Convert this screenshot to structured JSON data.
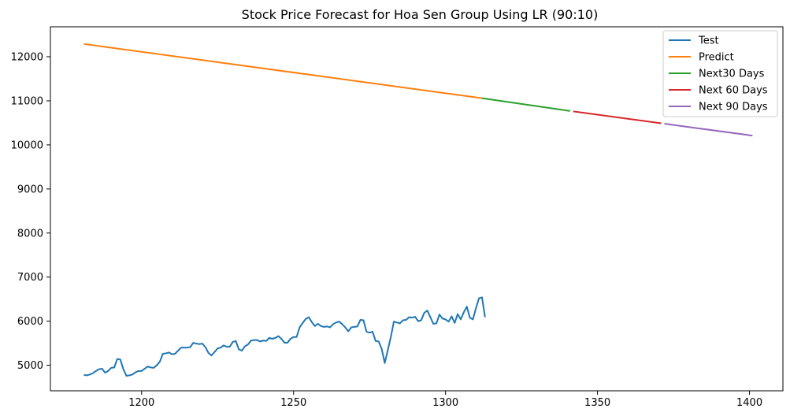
{
  "chart_data": {
    "type": "line",
    "title": "Stock Price Forecast for Hoa Sen Group Using LR (90:10)",
    "xlabel": "",
    "ylabel": "",
    "xlim": [
      1170,
      1411
    ],
    "ylim": [
      4420,
      12680
    ],
    "xticks": [
      1200,
      1250,
      1300,
      1350,
      1400
    ],
    "yticks": [
      5000,
      6000,
      7000,
      8000,
      9000,
      10000,
      11000,
      12000
    ],
    "grid": false,
    "legend_position": "top-right",
    "series": [
      {
        "name": "Test",
        "color": "#1f77b4",
        "points": [
          [
            1181,
            4780
          ],
          [
            1182,
            4770
          ],
          [
            1183,
            4790
          ],
          [
            1184,
            4820
          ],
          [
            1185,
            4870
          ],
          [
            1186,
            4910
          ],
          [
            1187,
            4920
          ],
          [
            1188,
            4830
          ],
          [
            1189,
            4870
          ],
          [
            1190,
            4940
          ],
          [
            1191,
            4950
          ],
          [
            1192,
            5140
          ],
          [
            1193,
            5130
          ],
          [
            1194,
            4910
          ],
          [
            1195,
            4760
          ],
          [
            1196,
            4770
          ],
          [
            1197,
            4790
          ],
          [
            1198,
            4840
          ],
          [
            1199,
            4870
          ],
          [
            1200,
            4870
          ],
          [
            1201,
            4920
          ],
          [
            1202,
            4970
          ],
          [
            1203,
            4950
          ],
          [
            1204,
            4940
          ],
          [
            1205,
            5000
          ],
          [
            1206,
            5080
          ],
          [
            1207,
            5260
          ],
          [
            1208,
            5270
          ],
          [
            1209,
            5290
          ],
          [
            1210,
            5250
          ],
          [
            1211,
            5260
          ],
          [
            1212,
            5330
          ],
          [
            1213,
            5400
          ],
          [
            1214,
            5400
          ],
          [
            1215,
            5400
          ],
          [
            1216,
            5410
          ],
          [
            1217,
            5510
          ],
          [
            1218,
            5490
          ],
          [
            1219,
            5480
          ],
          [
            1220,
            5490
          ],
          [
            1221,
            5410
          ],
          [
            1222,
            5280
          ],
          [
            1223,
            5220
          ],
          [
            1224,
            5300
          ],
          [
            1225,
            5380
          ],
          [
            1226,
            5400
          ],
          [
            1227,
            5450
          ],
          [
            1228,
            5420
          ],
          [
            1229,
            5420
          ],
          [
            1230,
            5530
          ],
          [
            1231,
            5550
          ],
          [
            1232,
            5360
          ],
          [
            1233,
            5330
          ],
          [
            1234,
            5430
          ],
          [
            1235,
            5470
          ],
          [
            1236,
            5560
          ],
          [
            1237,
            5570
          ],
          [
            1238,
            5570
          ],
          [
            1239,
            5540
          ],
          [
            1240,
            5560
          ],
          [
            1241,
            5550
          ],
          [
            1242,
            5620
          ],
          [
            1243,
            5600
          ],
          [
            1244,
            5620
          ],
          [
            1245,
            5660
          ],
          [
            1246,
            5600
          ],
          [
            1247,
            5510
          ],
          [
            1248,
            5510
          ],
          [
            1249,
            5600
          ],
          [
            1250,
            5640
          ],
          [
            1251,
            5640
          ],
          [
            1252,
            5860
          ],
          [
            1253,
            5960
          ],
          [
            1254,
            6050
          ],
          [
            1255,
            6090
          ],
          [
            1256,
            5980
          ],
          [
            1257,
            5890
          ],
          [
            1258,
            5940
          ],
          [
            1259,
            5890
          ],
          [
            1260,
            5870
          ],
          [
            1261,
            5880
          ],
          [
            1262,
            5860
          ],
          [
            1263,
            5930
          ],
          [
            1264,
            5970
          ],
          [
            1265,
            5990
          ],
          [
            1266,
            5930
          ],
          [
            1267,
            5860
          ],
          [
            1268,
            5770
          ],
          [
            1269,
            5860
          ],
          [
            1270,
            5870
          ],
          [
            1271,
            5880
          ],
          [
            1272,
            6030
          ],
          [
            1273,
            6020
          ],
          [
            1274,
            5760
          ],
          [
            1275,
            5740
          ],
          [
            1276,
            5760
          ],
          [
            1277,
            5550
          ],
          [
            1278,
            5540
          ],
          [
            1279,
            5370
          ],
          [
            1280,
            5050
          ],
          [
            1281,
            5340
          ],
          [
            1282,
            5640
          ],
          [
            1283,
            5990
          ],
          [
            1284,
            5970
          ],
          [
            1285,
            5950
          ],
          [
            1286,
            6020
          ],
          [
            1287,
            6030
          ],
          [
            1288,
            6090
          ],
          [
            1289,
            6080
          ],
          [
            1290,
            6100
          ],
          [
            1291,
            6000
          ],
          [
            1292,
            6020
          ],
          [
            1293,
            6190
          ],
          [
            1294,
            6240
          ],
          [
            1295,
            6090
          ],
          [
            1296,
            5940
          ],
          [
            1297,
            5950
          ],
          [
            1298,
            6150
          ],
          [
            1299,
            6060
          ],
          [
            1300,
            6040
          ],
          [
            1301,
            5990
          ],
          [
            1302,
            6110
          ],
          [
            1303,
            5960
          ],
          [
            1304,
            6160
          ],
          [
            1305,
            6040
          ],
          [
            1306,
            6200
          ],
          [
            1307,
            6330
          ],
          [
            1308,
            6080
          ],
          [
            1309,
            6040
          ],
          [
            1310,
            6290
          ],
          [
            1311,
            6520
          ],
          [
            1312,
            6540
          ],
          [
            1313,
            6090
          ]
        ]
      },
      {
        "name": "Predict",
        "color": "#ff7f0e",
        "points": [
          [
            1181,
            12290
          ],
          [
            1312,
            11060
          ]
        ]
      },
      {
        "name": "Next30 Days",
        "color": "#2ca02c",
        "points": [
          [
            1312,
            11060
          ],
          [
            1341,
            10770
          ]
        ]
      },
      {
        "name": "Next 60 Days",
        "color": "#d62728",
        "points": [
          [
            1342,
            10760
          ],
          [
            1371,
            10490
          ]
        ]
      },
      {
        "name": "Next 90 Days",
        "color": "#9467bd",
        "points": [
          [
            1372,
            10480
          ],
          [
            1401,
            10210
          ]
        ]
      }
    ]
  }
}
